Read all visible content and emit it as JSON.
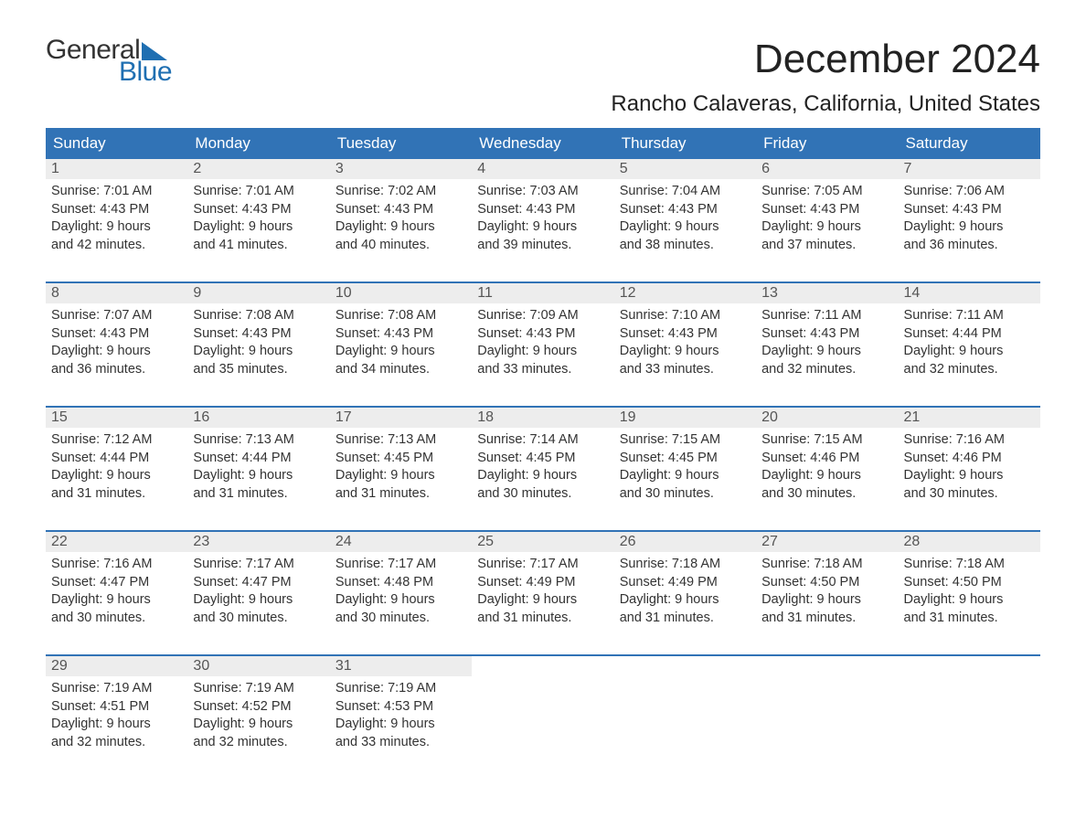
{
  "logo": {
    "top": "General",
    "bottom": "Blue"
  },
  "title": "December 2024",
  "location": "Rancho Calaveras, California, United States",
  "colors": {
    "header_bg": "#3173b6",
    "header_text": "#ffffff",
    "daynum_bg": "#ededed",
    "daynum_text": "#555555",
    "body_text": "#333333",
    "logo_blue": "#1f6fb2",
    "page_bg": "#ffffff",
    "week_border": "#3173b6"
  },
  "typography": {
    "title_fontsize": 44,
    "location_fontsize": 24,
    "header_fontsize": 17,
    "body_fontsize": 14.5,
    "daynum_fontsize": 16,
    "logo_fontsize": 30
  },
  "day_headers": [
    "Sunday",
    "Monday",
    "Tuesday",
    "Wednesday",
    "Thursday",
    "Friday",
    "Saturday"
  ],
  "weeks": [
    [
      {
        "num": "1",
        "sunrise": "Sunrise: 7:01 AM",
        "sunset": "Sunset: 4:43 PM",
        "daylight1": "Daylight: 9 hours",
        "daylight2": "and 42 minutes."
      },
      {
        "num": "2",
        "sunrise": "Sunrise: 7:01 AM",
        "sunset": "Sunset: 4:43 PM",
        "daylight1": "Daylight: 9 hours",
        "daylight2": "and 41 minutes."
      },
      {
        "num": "3",
        "sunrise": "Sunrise: 7:02 AM",
        "sunset": "Sunset: 4:43 PM",
        "daylight1": "Daylight: 9 hours",
        "daylight2": "and 40 minutes."
      },
      {
        "num": "4",
        "sunrise": "Sunrise: 7:03 AM",
        "sunset": "Sunset: 4:43 PM",
        "daylight1": "Daylight: 9 hours",
        "daylight2": "and 39 minutes."
      },
      {
        "num": "5",
        "sunrise": "Sunrise: 7:04 AM",
        "sunset": "Sunset: 4:43 PM",
        "daylight1": "Daylight: 9 hours",
        "daylight2": "and 38 minutes."
      },
      {
        "num": "6",
        "sunrise": "Sunrise: 7:05 AM",
        "sunset": "Sunset: 4:43 PM",
        "daylight1": "Daylight: 9 hours",
        "daylight2": "and 37 minutes."
      },
      {
        "num": "7",
        "sunrise": "Sunrise: 7:06 AM",
        "sunset": "Sunset: 4:43 PM",
        "daylight1": "Daylight: 9 hours",
        "daylight2": "and 36 minutes."
      }
    ],
    [
      {
        "num": "8",
        "sunrise": "Sunrise: 7:07 AM",
        "sunset": "Sunset: 4:43 PM",
        "daylight1": "Daylight: 9 hours",
        "daylight2": "and 36 minutes."
      },
      {
        "num": "9",
        "sunrise": "Sunrise: 7:08 AM",
        "sunset": "Sunset: 4:43 PM",
        "daylight1": "Daylight: 9 hours",
        "daylight2": "and 35 minutes."
      },
      {
        "num": "10",
        "sunrise": "Sunrise: 7:08 AM",
        "sunset": "Sunset: 4:43 PM",
        "daylight1": "Daylight: 9 hours",
        "daylight2": "and 34 minutes."
      },
      {
        "num": "11",
        "sunrise": "Sunrise: 7:09 AM",
        "sunset": "Sunset: 4:43 PM",
        "daylight1": "Daylight: 9 hours",
        "daylight2": "and 33 minutes."
      },
      {
        "num": "12",
        "sunrise": "Sunrise: 7:10 AM",
        "sunset": "Sunset: 4:43 PM",
        "daylight1": "Daylight: 9 hours",
        "daylight2": "and 33 minutes."
      },
      {
        "num": "13",
        "sunrise": "Sunrise: 7:11 AM",
        "sunset": "Sunset: 4:43 PM",
        "daylight1": "Daylight: 9 hours",
        "daylight2": "and 32 minutes."
      },
      {
        "num": "14",
        "sunrise": "Sunrise: 7:11 AM",
        "sunset": "Sunset: 4:44 PM",
        "daylight1": "Daylight: 9 hours",
        "daylight2": "and 32 minutes."
      }
    ],
    [
      {
        "num": "15",
        "sunrise": "Sunrise: 7:12 AM",
        "sunset": "Sunset: 4:44 PM",
        "daylight1": "Daylight: 9 hours",
        "daylight2": "and 31 minutes."
      },
      {
        "num": "16",
        "sunrise": "Sunrise: 7:13 AM",
        "sunset": "Sunset: 4:44 PM",
        "daylight1": "Daylight: 9 hours",
        "daylight2": "and 31 minutes."
      },
      {
        "num": "17",
        "sunrise": "Sunrise: 7:13 AM",
        "sunset": "Sunset: 4:45 PM",
        "daylight1": "Daylight: 9 hours",
        "daylight2": "and 31 minutes."
      },
      {
        "num": "18",
        "sunrise": "Sunrise: 7:14 AM",
        "sunset": "Sunset: 4:45 PM",
        "daylight1": "Daylight: 9 hours",
        "daylight2": "and 30 minutes."
      },
      {
        "num": "19",
        "sunrise": "Sunrise: 7:15 AM",
        "sunset": "Sunset: 4:45 PM",
        "daylight1": "Daylight: 9 hours",
        "daylight2": "and 30 minutes."
      },
      {
        "num": "20",
        "sunrise": "Sunrise: 7:15 AM",
        "sunset": "Sunset: 4:46 PM",
        "daylight1": "Daylight: 9 hours",
        "daylight2": "and 30 minutes."
      },
      {
        "num": "21",
        "sunrise": "Sunrise: 7:16 AM",
        "sunset": "Sunset: 4:46 PM",
        "daylight1": "Daylight: 9 hours",
        "daylight2": "and 30 minutes."
      }
    ],
    [
      {
        "num": "22",
        "sunrise": "Sunrise: 7:16 AM",
        "sunset": "Sunset: 4:47 PM",
        "daylight1": "Daylight: 9 hours",
        "daylight2": "and 30 minutes."
      },
      {
        "num": "23",
        "sunrise": "Sunrise: 7:17 AM",
        "sunset": "Sunset: 4:47 PM",
        "daylight1": "Daylight: 9 hours",
        "daylight2": "and 30 minutes."
      },
      {
        "num": "24",
        "sunrise": "Sunrise: 7:17 AM",
        "sunset": "Sunset: 4:48 PM",
        "daylight1": "Daylight: 9 hours",
        "daylight2": "and 30 minutes."
      },
      {
        "num": "25",
        "sunrise": "Sunrise: 7:17 AM",
        "sunset": "Sunset: 4:49 PM",
        "daylight1": "Daylight: 9 hours",
        "daylight2": "and 31 minutes."
      },
      {
        "num": "26",
        "sunrise": "Sunrise: 7:18 AM",
        "sunset": "Sunset: 4:49 PM",
        "daylight1": "Daylight: 9 hours",
        "daylight2": "and 31 minutes."
      },
      {
        "num": "27",
        "sunrise": "Sunrise: 7:18 AM",
        "sunset": "Sunset: 4:50 PM",
        "daylight1": "Daylight: 9 hours",
        "daylight2": "and 31 minutes."
      },
      {
        "num": "28",
        "sunrise": "Sunrise: 7:18 AM",
        "sunset": "Sunset: 4:50 PM",
        "daylight1": "Daylight: 9 hours",
        "daylight2": "and 31 minutes."
      }
    ],
    [
      {
        "num": "29",
        "sunrise": "Sunrise: 7:19 AM",
        "sunset": "Sunset: 4:51 PM",
        "daylight1": "Daylight: 9 hours",
        "daylight2": "and 32 minutes."
      },
      {
        "num": "30",
        "sunrise": "Sunrise: 7:19 AM",
        "sunset": "Sunset: 4:52 PM",
        "daylight1": "Daylight: 9 hours",
        "daylight2": "and 32 minutes."
      },
      {
        "num": "31",
        "sunrise": "Sunrise: 7:19 AM",
        "sunset": "Sunset: 4:53 PM",
        "daylight1": "Daylight: 9 hours",
        "daylight2": "and 33 minutes."
      },
      {
        "empty": true
      },
      {
        "empty": true
      },
      {
        "empty": true
      },
      {
        "empty": true
      }
    ]
  ]
}
